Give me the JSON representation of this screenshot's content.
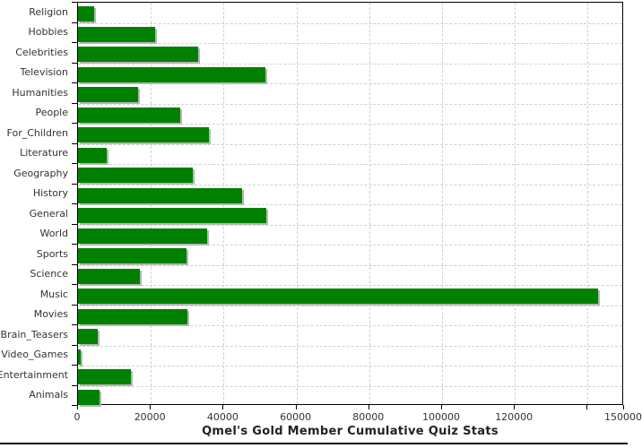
{
  "chart_data": {
    "type": "bar",
    "orientation": "horizontal",
    "title": "Qmel's Gold Member Cumulative Quiz Stats",
    "categories": [
      "Religion",
      "Hobbies",
      "Celebrities",
      "Television",
      "Humanities",
      "People",
      "For_Children",
      "Literature",
      "Geography",
      "History",
      "General",
      "World",
      "Sports",
      "Science",
      "Music",
      "Movies",
      "Brain_Teasers",
      "Video_Games",
      "Entertainment",
      "Animals"
    ],
    "values": [
      4500,
      21100,
      33000,
      51600,
      16600,
      28100,
      36000,
      8000,
      31600,
      45100,
      51700,
      35500,
      29800,
      17000,
      142800,
      30100,
      5500,
      800,
      14500,
      5900
    ],
    "xlim": [
      0,
      150000
    ],
    "x_ticks": [
      0,
      20000,
      40000,
      60000,
      80000,
      100000,
      120000,
      140000
    ],
    "x_tick_labels": [
      "0",
      "20000",
      "40000",
      "60000",
      "80000",
      "100000",
      "120000"
    ],
    "x_end_label": "150000",
    "xlabel": "",
    "ylabel": "",
    "grid": "dashed",
    "legend": "none",
    "colors": {
      "bar": "#008000",
      "bar_shadow": "#b6b6b6",
      "grid": "#cdd2d8",
      "frame": "#000000",
      "tick_text": "#333333",
      "title_text": "#222222",
      "background": "#ffffff"
    }
  }
}
